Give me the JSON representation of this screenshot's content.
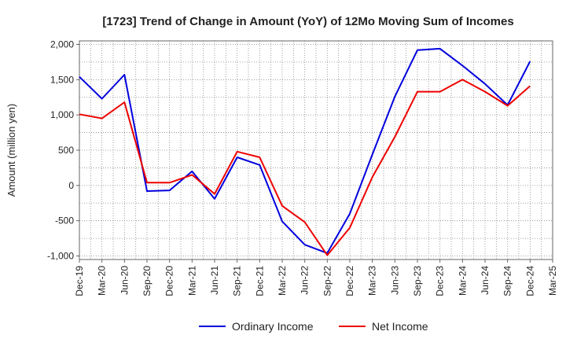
{
  "chart_data": {
    "type": "line",
    "title": "[1723]  Trend of Change in Amount (YoY) of 12Mo Moving Sum of Incomes",
    "xlabel": "",
    "ylabel": "Amount (million yen)",
    "ylim": [
      -1050,
      2050
    ],
    "yticks": [
      -1000,
      -500,
      0,
      500,
      1000,
      1500,
      2000
    ],
    "ytick_labels": [
      "-1,000",
      "-500",
      "0",
      "500",
      "1,000",
      "1,500",
      "2,000"
    ],
    "categories": [
      "Dec-19",
      "Mar-20",
      "Jun-20",
      "Sep-20",
      "Dec-20",
      "Mar-21",
      "Jun-21",
      "Sep-21",
      "Dec-21",
      "Mar-22",
      "Jun-22",
      "Sep-22",
      "Dec-22",
      "Mar-23",
      "Jun-23",
      "Sep-23",
      "Dec-23",
      "Mar-24",
      "Jun-24",
      "Sep-24",
      "Dec-24",
      "Mar-25"
    ],
    "grid": true,
    "legend": "bottom",
    "series": [
      {
        "name": "Ordinary Income",
        "color": "#0000dd",
        "values": [
          1540,
          1230,
          1570,
          -80,
          -70,
          200,
          -190,
          400,
          290,
          -510,
          -840,
          -960,
          -400,
          440,
          1260,
          1920,
          1940,
          1700,
          1440,
          1140,
          1760,
          null
        ]
      },
      {
        "name": "Net Income",
        "color": "#ee0000",
        "values": [
          1010,
          950,
          1180,
          40,
          40,
          150,
          -120,
          480,
          400,
          -290,
          -520,
          -990,
          -600,
          120,
          690,
          1330,
          1330,
          1500,
          1330,
          1130,
          1410,
          null
        ]
      }
    ]
  }
}
